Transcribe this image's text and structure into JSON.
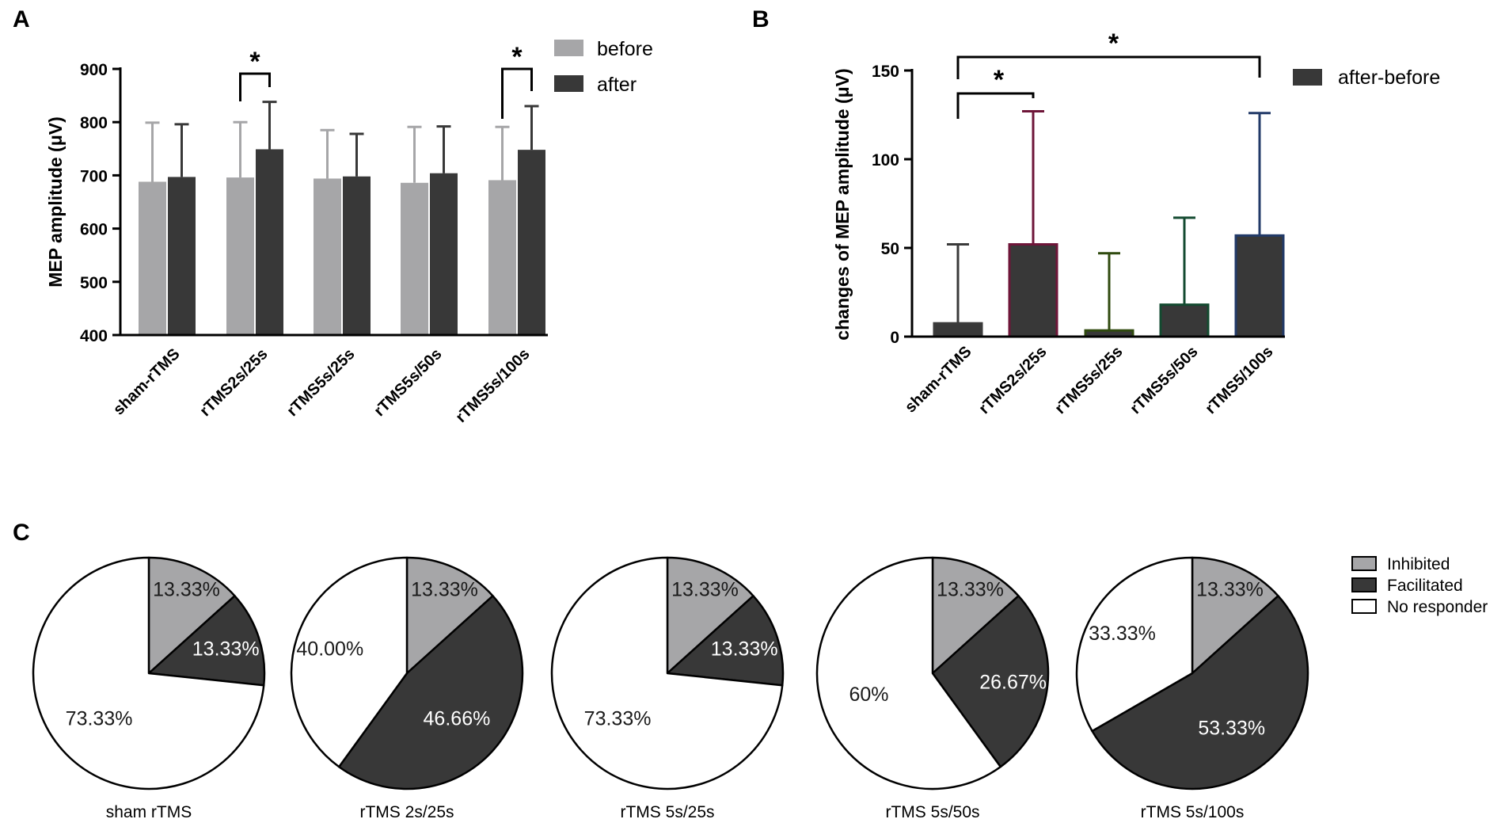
{
  "chart_data": [
    {
      "panel": "A",
      "type": "bar",
      "ylabel": "MEP amplitude (μV)",
      "ylim": [
        400,
        900
      ],
      "yticks": [
        400,
        500,
        600,
        700,
        800,
        900
      ],
      "categories": [
        "sham-rTMS",
        "rTMS2s/25s",
        "rTMS5s/25s",
        "rTMS5s/50s",
        "rTMS5s/100s"
      ],
      "series": [
        {
          "name": "before",
          "color": "#a6a6a8",
          "values": [
            688,
            696,
            694,
            686,
            691
          ],
          "errors": [
            111,
            104,
            91,
            105,
            100
          ]
        },
        {
          "name": "after",
          "color": "#383838",
          "values": [
            697,
            749,
            698,
            704,
            748
          ],
          "errors": [
            99,
            89,
            80,
            88,
            82
          ]
        }
      ],
      "significance": [
        {
          "category": "rTMS2s/25s",
          "label": "*"
        },
        {
          "category": "rTMS5s/100s",
          "label": "*"
        }
      ]
    },
    {
      "panel": "B",
      "type": "bar",
      "ylabel": "changes of MEP amplitude (μV)",
      "ylim": [
        0,
        150
      ],
      "yticks": [
        0,
        50,
        100,
        150
      ],
      "categories": [
        "sham-rTMS",
        "rTMS2s/25s",
        "rTMS5s/25s",
        "rTMS5s/50s",
        "rTMS5/100s"
      ],
      "series": [
        {
          "name": "after-before",
          "color": "#383838",
          "values": [
            7.5,
            52,
            3.5,
            18,
            57
          ],
          "errors": [
            44.5,
            75,
            43.5,
            49,
            69
          ],
          "edge_colors": [
            "#3a3a3a",
            "#6e1538",
            "#2f4a0e",
            "#134a30",
            "#223a68"
          ]
        }
      ],
      "significance": [
        {
          "from": "sham-rTMS",
          "to": "rTMS2s/25s",
          "label": "*"
        },
        {
          "from": "sham-rTMS",
          "to": "rTMS5/100s",
          "label": "*"
        }
      ]
    },
    {
      "panel": "C",
      "type": "pie",
      "legend": [
        {
          "name": "Inhibited",
          "color": "#a6a6a8"
        },
        {
          "name": "Facilitated",
          "color": "#383838"
        },
        {
          "name": "No responder",
          "color": "#ffffff"
        }
      ],
      "pies": [
        {
          "title": "sham rTMS",
          "values": [
            13.33,
            13.33,
            73.33
          ],
          "labels": [
            "13.33%",
            "13.33%",
            "73.33%"
          ]
        },
        {
          "title": "rTMS 2s/25s",
          "values": [
            13.33,
            46.66,
            40.0
          ],
          "labels": [
            "13.33%",
            "46.66%",
            "40.00%"
          ]
        },
        {
          "title": "rTMS 5s/25s",
          "values": [
            13.33,
            13.33,
            73.33
          ],
          "labels": [
            "13.33%",
            "13.33%",
            "73.33%"
          ]
        },
        {
          "title": "rTMS 5s/50s",
          "values": [
            13.33,
            26.67,
            60
          ],
          "labels": [
            "13.33%",
            "26.67%",
            "60%"
          ]
        },
        {
          "title": "rTMS 5s/100s",
          "values": [
            13.33,
            53.33,
            33.33
          ],
          "labels": [
            "13.33%",
            "53.33%",
            "33.33%"
          ]
        }
      ]
    }
  ]
}
